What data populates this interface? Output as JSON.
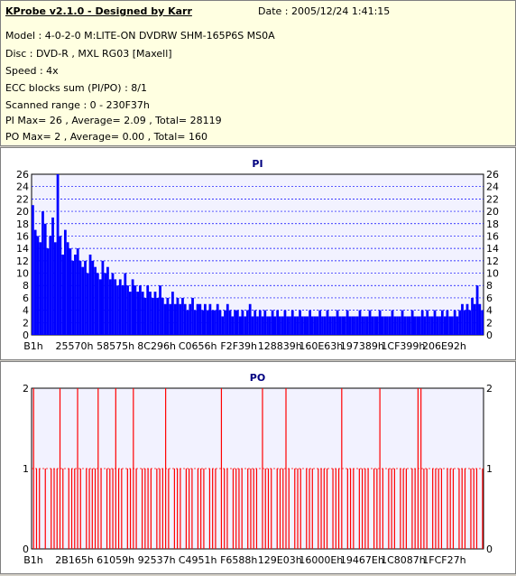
{
  "header": {
    "title": "KProbe v2.1.0 - Designed by Karr",
    "date": "Date : 2005/12/24 1:41:15",
    "lines": [
      "Model : 4-0-2-0 M:LITE-ON DVDRW SHM-165P6S MS0A",
      "Disc : DVD-R , MXL RG03 [Maxell]",
      "Speed : 4x",
      "ECC blocks sum (PI/PO) : 8/1",
      "Scanned range : 0 - 230F37h",
      "PI Max= 26 , Average= 2.09 , Total= 28119",
      "PO Max= 2 , Average= 0.00 , Total= 160"
    ]
  },
  "colors": {
    "pi": "#0000ff",
    "po": "#ff0000",
    "plot_bg": "#f2f2ff",
    "title": "#000080"
  },
  "chart_data": [
    {
      "type": "bar",
      "title": "PI",
      "ylim": [
        0,
        26
      ],
      "yticks": [
        0,
        2,
        4,
        6,
        8,
        10,
        12,
        14,
        16,
        18,
        20,
        22,
        24,
        26
      ],
      "xticks": [
        "B1h",
        "25570h",
        "58575h",
        "8C296h",
        "C0656h",
        "F2F39h",
        "128839h",
        "160E63h",
        "197389h",
        "1CF399h",
        "206E92h"
      ],
      "series": [
        {
          "values": [
            21,
            17,
            16,
            15,
            20,
            18,
            14,
            16,
            19,
            15,
            26,
            16,
            13,
            17,
            15,
            14,
            12,
            13,
            14,
            12,
            11,
            12,
            10,
            13,
            12,
            11,
            10,
            9,
            12,
            10,
            11,
            9,
            10,
            9,
            8,
            9,
            8,
            10,
            8,
            7,
            9,
            8,
            7,
            8,
            7,
            6,
            8,
            7,
            6,
            7,
            6,
            8,
            6,
            5,
            6,
            5,
            7,
            5,
            6,
            5,
            6,
            5,
            4,
            5,
            6,
            4,
            5,
            5,
            4,
            5,
            4,
            5,
            4,
            4,
            5,
            4,
            3,
            4,
            5,
            4,
            3,
            4,
            4,
            3,
            4,
            3,
            4,
            5,
            3,
            4,
            3,
            4,
            3,
            4,
            3,
            3,
            4,
            3,
            4,
            3,
            3,
            4,
            3,
            3,
            4,
            3,
            3,
            4,
            3,
            3,
            3,
            4,
            3,
            3,
            3,
            4,
            3,
            3,
            4,
            3,
            3,
            3,
            4,
            3,
            3,
            3,
            4,
            3,
            3,
            3,
            3,
            4,
            3,
            3,
            3,
            4,
            3,
            3,
            3,
            4,
            3,
            3,
            3,
            3,
            4,
            3,
            3,
            3,
            4,
            3,
            3,
            3,
            4,
            3,
            3,
            3,
            4,
            3,
            4,
            3,
            3,
            4,
            3,
            3,
            4,
            3,
            4,
            3,
            3,
            4,
            3,
            4,
            5,
            4,
            5,
            4,
            6,
            5,
            8,
            5,
            4
          ]
        }
      ]
    },
    {
      "type": "bar",
      "title": "PO",
      "ylim": [
        0,
        2
      ],
      "yticks": [
        0,
        1,
        2
      ],
      "xticks": [
        "B1h",
        "2B165h",
        "61059h",
        "92537h",
        "C4951h",
        "F6588h",
        "129E03h",
        "16000Eh",
        "19467Eh",
        "1C8087h",
        "1FCF27h"
      ],
      "series": [
        {
          "values": [
            2,
            1,
            1,
            0,
            1,
            0,
            1,
            1,
            1,
            2,
            1,
            0,
            1,
            1,
            1,
            2,
            1,
            0,
            1,
            1,
            1,
            1,
            2,
            1,
            0,
            1,
            1,
            1,
            2,
            1,
            1,
            0,
            1,
            1,
            2,
            1,
            0,
            1,
            1,
            1,
            1,
            0,
            1,
            1,
            1,
            2,
            1,
            0,
            1,
            1,
            1,
            0,
            1,
            1,
            1,
            0,
            1,
            1,
            1,
            0,
            1,
            1,
            1,
            0,
            2,
            1,
            1,
            0,
            1,
            1,
            1,
            1,
            0,
            1,
            1,
            1,
            1,
            0,
            2,
            1,
            1,
            1,
            0,
            1,
            1,
            1,
            2,
            1,
            0,
            1,
            1,
            1,
            0,
            1,
            1,
            1,
            0,
            1,
            1,
            1,
            1,
            0,
            1,
            1,
            1,
            2,
            0,
            1,
            1,
            1,
            0,
            1,
            1,
            1,
            1,
            0,
            1,
            1,
            2,
            1,
            0,
            1,
            1,
            1,
            0,
            1,
            1,
            1,
            0,
            1,
            1,
            2,
            2,
            1,
            1,
            0,
            1,
            1,
            1,
            1,
            0,
            1,
            1,
            1,
            0,
            1,
            1,
            1,
            0,
            1,
            1,
            1,
            0,
            1
          ]
        }
      ]
    }
  ]
}
